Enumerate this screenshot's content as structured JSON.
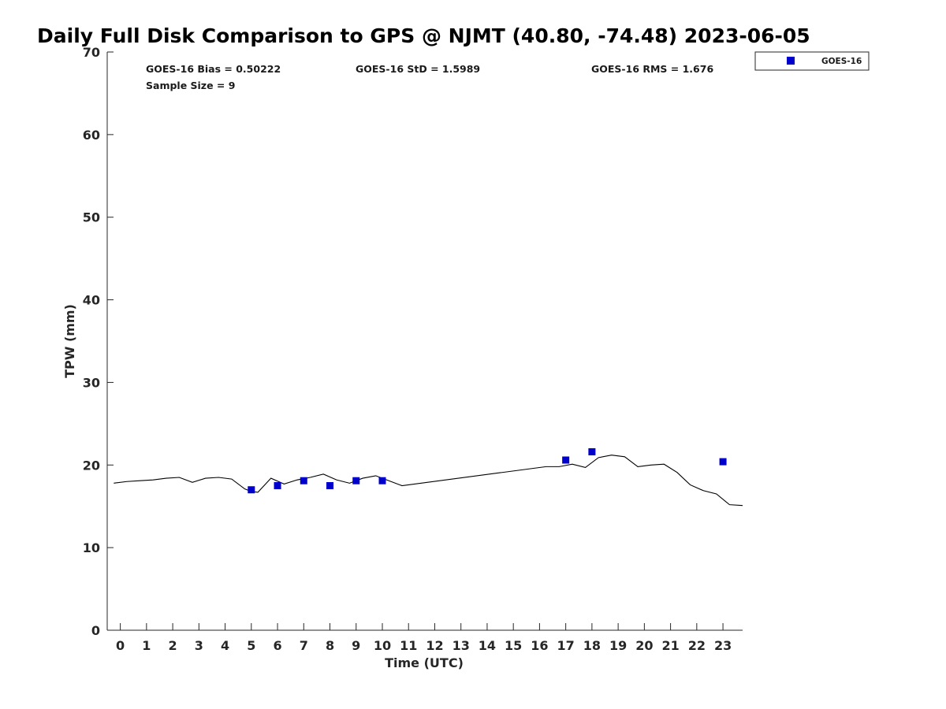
{
  "chart_data": {
    "type": "scatter",
    "title": "Daily Full Disk Comparison to GPS @ NJMT (40.80, -74.48) 2023-06-05",
    "xlabel": "Time (UTC)",
    "ylabel": "TPW (mm)",
    "xlim": [
      -0.5,
      23.75
    ],
    "ylim": [
      0,
      70
    ],
    "xticks": [
      0,
      1,
      2,
      3,
      4,
      5,
      6,
      7,
      8,
      9,
      10,
      11,
      12,
      13,
      14,
      15,
      16,
      17,
      18,
      19,
      20,
      21,
      22,
      23
    ],
    "yticks": [
      0,
      10,
      20,
      30,
      40,
      50,
      60,
      70
    ],
    "grid": false,
    "legend_position": "outside-top-right",
    "stats": {
      "bias": "GOES-16 Bias = 0.50222",
      "std": "GOES-16 StD = 1.5989",
      "rms": "GOES-16 RMS = 1.676",
      "sample_size": "Sample Size = 9"
    },
    "series": [
      {
        "name": "GOES-16",
        "type": "scatter",
        "marker": "square",
        "color": "#0000cc",
        "x": [
          5,
          6,
          7,
          8,
          9,
          10,
          17,
          18,
          23
        ],
        "y": [
          17.0,
          17.5,
          18.1,
          17.5,
          18.1,
          18.1,
          20.6,
          21.6,
          20.4
        ]
      },
      {
        "type": "line",
        "color": "#000000",
        "x": [
          -0.25,
          0.25,
          0.75,
          1.25,
          1.75,
          2.25,
          2.75,
          3.25,
          3.75,
          4.25,
          4.75,
          5.0,
          5.25,
          5.75,
          6.25,
          6.75,
          7.25,
          7.75,
          8.25,
          8.75,
          9.25,
          9.75,
          10.25,
          10.75,
          16.25,
          16.75,
          17.25,
          17.75,
          18.25,
          18.75,
          19.25,
          19.75,
          20.25,
          20.75,
          21.25,
          21.75,
          22.25,
          22.75,
          23.25,
          23.75
        ],
        "y": [
          17.8,
          18.0,
          18.1,
          18.2,
          18.4,
          18.5,
          17.9,
          18.4,
          18.5,
          18.3,
          17.1,
          16.8,
          16.7,
          18.4,
          17.7,
          18.2,
          18.5,
          18.9,
          18.2,
          17.8,
          18.4,
          18.7,
          18.1,
          17.5,
          19.8,
          19.8,
          20.1,
          19.7,
          20.9,
          21.2,
          21.0,
          19.8,
          20.0,
          20.1,
          19.1,
          17.6,
          16.9,
          16.5,
          15.2,
          15.1
        ]
      }
    ]
  }
}
